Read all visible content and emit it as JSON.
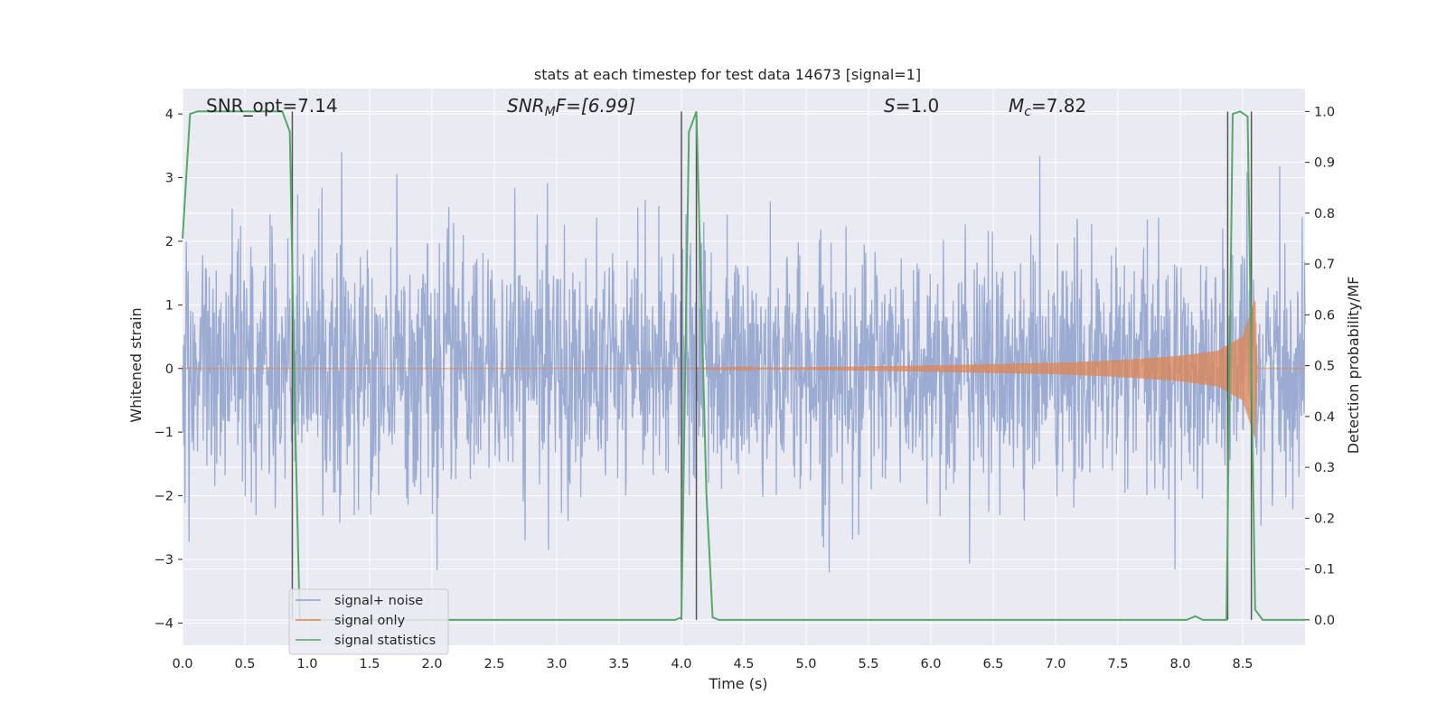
{
  "chart_data": {
    "type": "line",
    "title": "stats at each timestep for test data 14673 [signal=1]",
    "xlabel": "Time (s)",
    "ylabel": "Whitened strain",
    "ylabel_right": "Detection probability/MF",
    "xlim": [
      0.0,
      9.0
    ],
    "ylim": [
      -4.35,
      4.4
    ],
    "ylim_right": [
      -0.05,
      1.045
    ],
    "x_ticks": [
      "0.0",
      "0.5",
      "1.0",
      "1.5",
      "2.0",
      "2.5",
      "3.0",
      "3.5",
      "4.0",
      "4.5",
      "5.0",
      "5.5",
      "6.0",
      "6.5",
      "7.0",
      "7.5",
      "8.0",
      "8.5"
    ],
    "y_ticks": [
      "4",
      "3",
      "2",
      "1",
      "0",
      "−1",
      "−2",
      "−3",
      "−4"
    ],
    "y_ticks_right": [
      "1.0",
      "0.9",
      "0.8",
      "0.7",
      "0.6",
      "0.5",
      "0.4",
      "0.3",
      "0.2",
      "0.1",
      "0.0"
    ],
    "grid": true,
    "legend_placement": "lower-left",
    "annotations": {
      "snr_opt": "SNR_opt=7.14",
      "snr_mf": "SNR",
      "snr_mf_sub": "M",
      "snr_mf_rest": "F=[6.99]",
      "s_italic": "S",
      "s_rest": "=1.0",
      "mc_italic": "M",
      "mc_sub": "c",
      "mc_rest": "=7.82"
    },
    "series": [
      {
        "name": "signal+ noise",
        "color": "#8da0cb",
        "noise_amplitude_typical": 1.6,
        "noise_amplitude_max": 3.4
      },
      {
        "name": "signal only",
        "color": "#dd8452",
        "envelope_t": [
          0.0,
          4.0,
          5.0,
          6.0,
          7.0,
          7.5,
          8.0,
          8.3,
          8.5,
          8.6,
          8.62
        ],
        "envelope_amp": [
          0.0,
          0.0,
          0.02,
          0.05,
          0.09,
          0.13,
          0.2,
          0.28,
          0.5,
          1.1,
          0.0
        ]
      },
      {
        "name": "signal statistics",
        "color": "#55a868",
        "axis": "right",
        "t": [
          0.0,
          0.06,
          0.12,
          0.8,
          0.86,
          0.9,
          0.94,
          1.0,
          1.05,
          3.95,
          4.0,
          4.06,
          4.12,
          4.2,
          4.25,
          4.3,
          8.05,
          8.12,
          8.18,
          8.37,
          8.42,
          8.48,
          8.54,
          8.6,
          8.66,
          8.75,
          9.0
        ],
        "p": [
          0.75,
          0.995,
          1.0,
          1.0,
          0.96,
          0.42,
          0.0,
          0.0,
          0.0,
          0.0,
          0.005,
          0.96,
          1.0,
          0.25,
          0.005,
          0.0,
          0.0,
          0.007,
          0.0,
          0.0,
          0.995,
          1.0,
          0.99,
          0.02,
          0.0,
          0.0,
          0.0
        ]
      }
    ],
    "vlines_s": [
      0.88,
      4.0,
      4.12,
      8.38,
      8.57
    ]
  },
  "colors": {
    "plot_bg": "#eaeaf2",
    "grid": "#ffffff",
    "text": "#262626",
    "vline": "#555555"
  }
}
